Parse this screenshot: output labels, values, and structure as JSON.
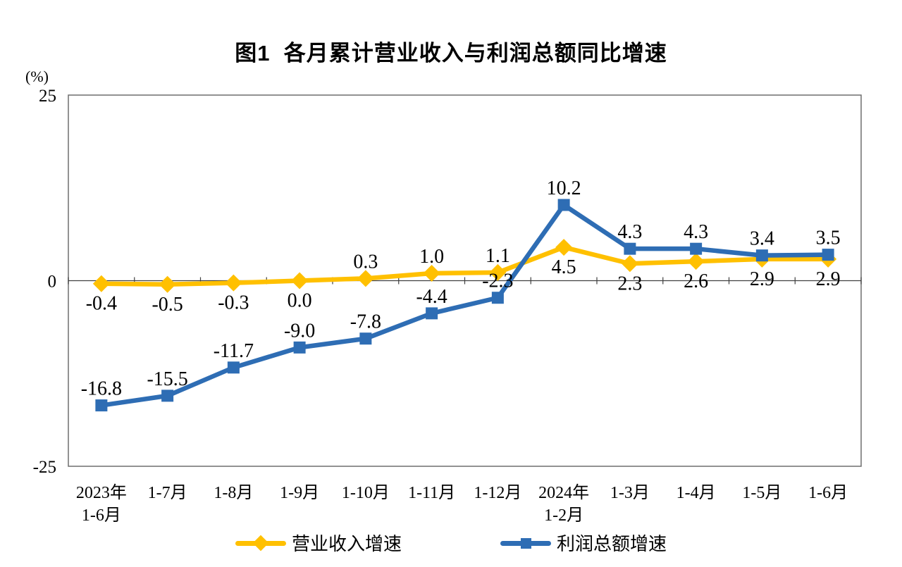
{
  "chart_data": {
    "type": "line",
    "title": "图1  各月累计营业收入与利润总额同比增速",
    "ylabel": "(%)",
    "xlabel": "",
    "ylim": [
      -25,
      25
    ],
    "yticks": [
      25,
      0,
      -25
    ],
    "grid": false,
    "legend_position": "bottom",
    "axis_color": "#404040",
    "border_color": "#6E6E6E",
    "categories": [
      "2023年\n1-6月",
      "1-7月",
      "1-8月",
      "1-9月",
      "1-10月",
      "1-11月",
      "1-12月",
      "2024年\n1-2月",
      "1-3月",
      "1-4月",
      "1-5月",
      "1-6月"
    ],
    "series": [
      {
        "name": "营业收入增速",
        "slug": "revenue",
        "color": "#FFC000",
        "marker": "diamond",
        "values": [
          -0.4,
          -0.5,
          -0.3,
          0.0,
          0.3,
          1.0,
          1.1,
          4.5,
          2.3,
          2.6,
          2.9,
          2.9
        ],
        "label_sides": [
          "below",
          "below",
          "below",
          "below",
          "above",
          "above",
          "above",
          "below",
          "below",
          "below",
          "below",
          "below"
        ]
      },
      {
        "name": "利润总额增速",
        "slug": "profit",
        "color": "#2E6DB4",
        "marker": "square",
        "values": [
          -16.8,
          -15.5,
          -11.7,
          -9.0,
          -7.8,
          -4.4,
          -2.3,
          10.2,
          4.3,
          4.3,
          3.4,
          3.5
        ],
        "label_sides": [
          "above",
          "above",
          "above",
          "above",
          "above",
          "above",
          "above",
          "above",
          "above",
          "above",
          "above",
          "above"
        ]
      }
    ]
  }
}
